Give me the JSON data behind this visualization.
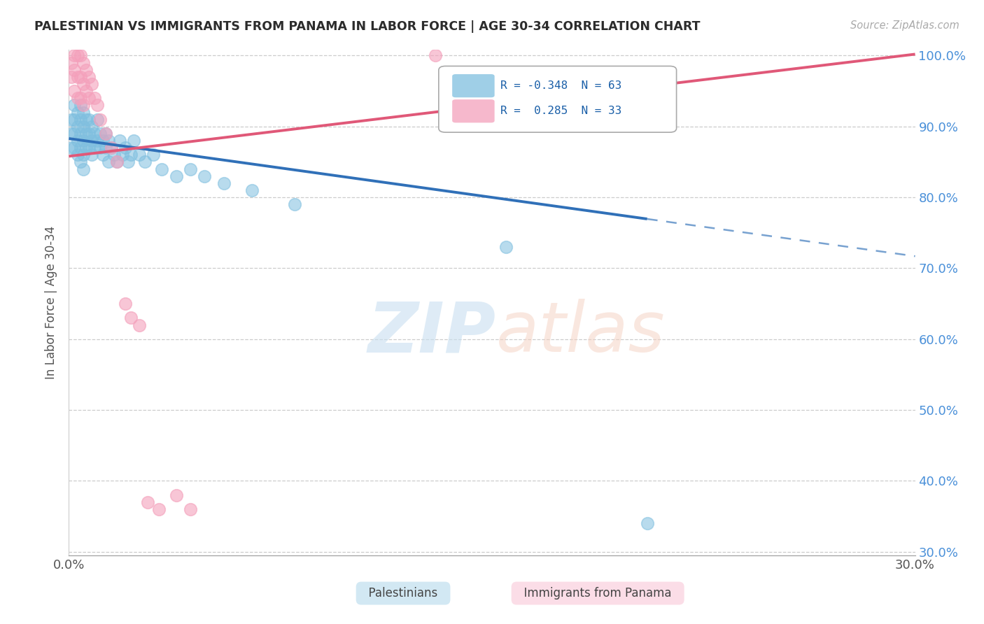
{
  "title": "PALESTINIAN VS IMMIGRANTS FROM PANAMA IN LABOR FORCE | AGE 30-34 CORRELATION CHART",
  "source": "Source: ZipAtlas.com",
  "ylabel": "In Labor Force | Age 30-34",
  "xlim": [
    0.0,
    0.3
  ],
  "ylim": [
    0.295,
    1.008
  ],
  "R_blue": -0.348,
  "N_blue": 63,
  "R_pink": 0.285,
  "N_pink": 33,
  "blue_color": "#7fbfdf",
  "pink_color": "#f4a0bb",
  "blue_line_color": "#3070b8",
  "pink_line_color": "#e05878",
  "blue_line_solid_end": 0.205,
  "blue_line_dash_start": 0.205,
  "blue_scatter_x": [
    0.001,
    0.001,
    0.001,
    0.002,
    0.002,
    0.002,
    0.002,
    0.003,
    0.003,
    0.003,
    0.003,
    0.004,
    0.004,
    0.004,
    0.004,
    0.004,
    0.005,
    0.005,
    0.005,
    0.005,
    0.005,
    0.006,
    0.006,
    0.006,
    0.007,
    0.007,
    0.007,
    0.008,
    0.008,
    0.008,
    0.009,
    0.009,
    0.01,
    0.01,
    0.011,
    0.011,
    0.012,
    0.012,
    0.013,
    0.013,
    0.014,
    0.014,
    0.015,
    0.016,
    0.017,
    0.018,
    0.019,
    0.02,
    0.021,
    0.022,
    0.023,
    0.025,
    0.027,
    0.03,
    0.033,
    0.038,
    0.043,
    0.048,
    0.055,
    0.065,
    0.08,
    0.155,
    0.205
  ],
  "blue_scatter_y": [
    0.91,
    0.89,
    0.87,
    0.93,
    0.91,
    0.89,
    0.87,
    0.92,
    0.9,
    0.88,
    0.86,
    0.93,
    0.91,
    0.89,
    0.87,
    0.85,
    0.92,
    0.9,
    0.88,
    0.86,
    0.84,
    0.91,
    0.89,
    0.87,
    0.91,
    0.89,
    0.87,
    0.9,
    0.88,
    0.86,
    0.89,
    0.87,
    0.91,
    0.88,
    0.89,
    0.87,
    0.88,
    0.86,
    0.89,
    0.87,
    0.88,
    0.85,
    0.87,
    0.86,
    0.85,
    0.88,
    0.86,
    0.87,
    0.85,
    0.86,
    0.88,
    0.86,
    0.85,
    0.86,
    0.84,
    0.83,
    0.84,
    0.83,
    0.82,
    0.81,
    0.79,
    0.73,
    0.34
  ],
  "pink_scatter_x": [
    0.001,
    0.001,
    0.002,
    0.002,
    0.002,
    0.003,
    0.003,
    0.003,
    0.004,
    0.004,
    0.004,
    0.005,
    0.005,
    0.005,
    0.006,
    0.006,
    0.007,
    0.007,
    0.008,
    0.009,
    0.01,
    0.011,
    0.013,
    0.015,
    0.017,
    0.02,
    0.022,
    0.025,
    0.028,
    0.032,
    0.038,
    0.043,
    0.13
  ],
  "pink_scatter_y": [
    0.99,
    0.97,
    1.0,
    0.98,
    0.95,
    1.0,
    0.97,
    0.94,
    1.0,
    0.97,
    0.94,
    0.99,
    0.96,
    0.93,
    0.98,
    0.95,
    0.97,
    0.94,
    0.96,
    0.94,
    0.93,
    0.91,
    0.89,
    0.87,
    0.85,
    0.65,
    0.63,
    0.62,
    0.37,
    0.36,
    0.38,
    0.36,
    1.0
  ],
  "blue_line_x0": 0.0,
  "blue_line_y0": 0.883,
  "blue_line_x1": 0.3,
  "blue_line_y1": 0.717,
  "pink_line_x0": 0.0,
  "pink_line_y0": 0.858,
  "pink_line_x1": 0.3,
  "pink_line_y1": 1.002
}
